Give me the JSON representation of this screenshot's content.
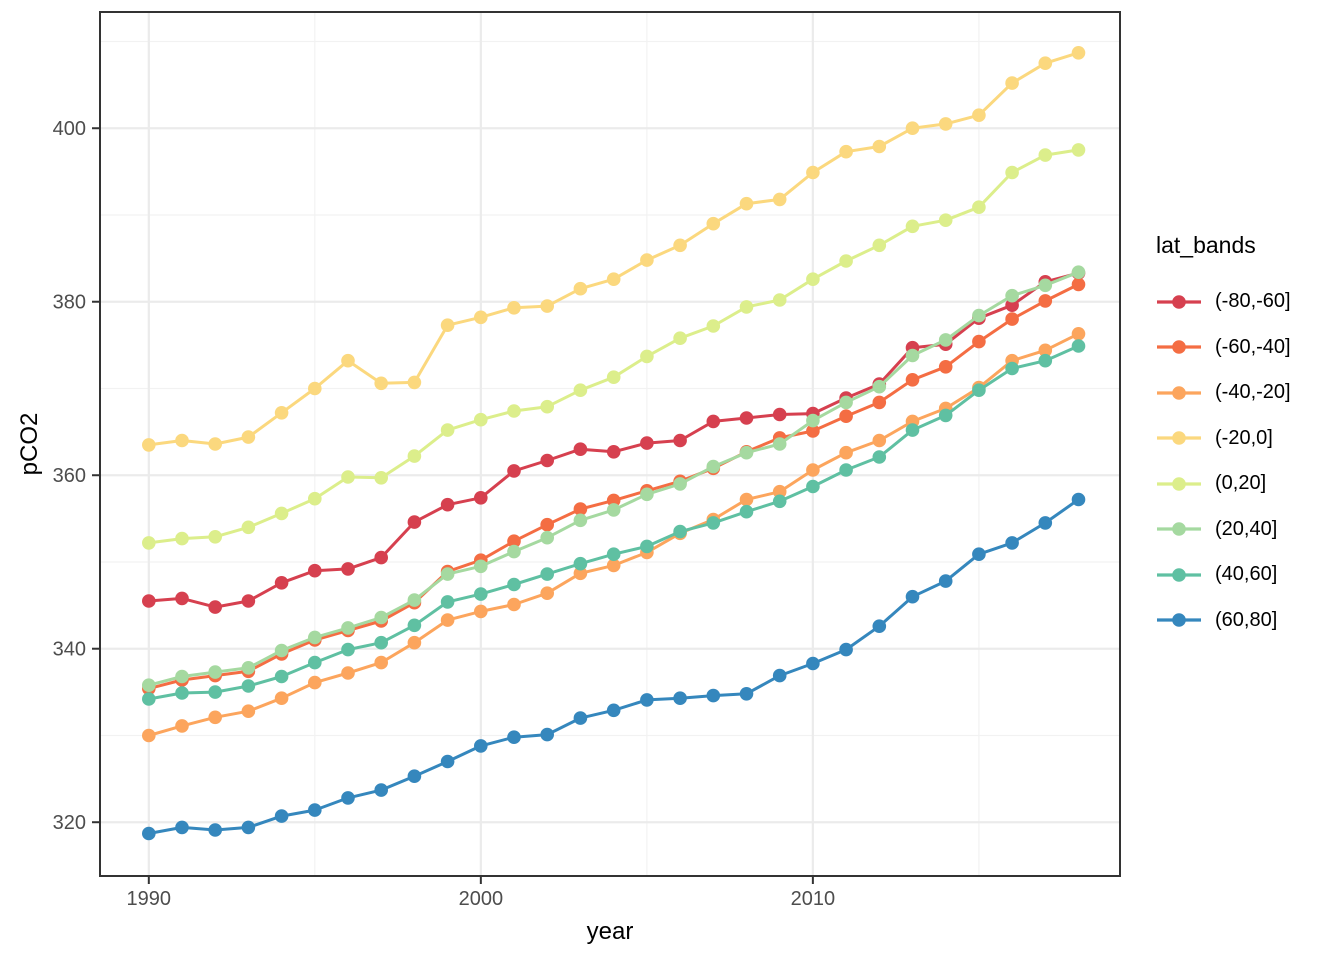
{
  "chart_data": {
    "type": "line",
    "title": "",
    "xlabel": "year",
    "ylabel": "pCO2",
    "legend_title": "lat_bands",
    "legend_position": "right",
    "grid": "on",
    "background": "#ffffff",
    "panel_border_color": "#333333",
    "grid_major_color": "#ebebeb",
    "grid_minor_color": "#f2f2f2",
    "tick_label_color": "#4d4d4d",
    "axis_title_color": "#000000",
    "xlim": [
      1988.53,
      2019.25
    ],
    "ylim": [
      313.8,
      413.4
    ],
    "x_major_ticks": [
      1990,
      2000,
      2010
    ],
    "x_minor_ticks": [
      1995,
      2005,
      2015
    ],
    "y_major_ticks": [
      320,
      340,
      360,
      380,
      400
    ],
    "y_minor_ticks": [
      330,
      350,
      370,
      390,
      410
    ],
    "x": [
      1990,
      1991,
      1992,
      1993,
      1994,
      1995,
      1996,
      1997,
      1998,
      1999,
      2000,
      2001,
      2002,
      2003,
      2004,
      2005,
      2006,
      2007,
      2008,
      2009,
      2010,
      2011,
      2012,
      2013,
      2014,
      2015,
      2016,
      2017,
      2018
    ],
    "series": [
      {
        "name": "(-80,-60]",
        "color": "#D6404F",
        "values": [
          345.5,
          345.8,
          344.8,
          345.5,
          347.6,
          349.0,
          349.2,
          350.5,
          354.6,
          356.6,
          357.4,
          360.5,
          361.7,
          363.0,
          362.7,
          363.7,
          364.0,
          366.2,
          366.6,
          367.0,
          367.1,
          368.9,
          370.5,
          374.7,
          375.1,
          378.1,
          379.6,
          382.3,
          383.3
        ]
      },
      {
        "name": "(-60,-40]",
        "color": "#F46D43",
        "values": [
          335.4,
          336.4,
          336.9,
          337.4,
          339.4,
          341.0,
          342.1,
          343.2,
          345.3,
          348.9,
          350.2,
          352.4,
          354.3,
          356.1,
          357.1,
          358.2,
          359.3,
          360.8,
          362.7,
          364.3,
          365.1,
          366.8,
          368.4,
          371.0,
          372.5,
          375.4,
          378.0,
          380.1,
          382.0
        ]
      },
      {
        "name": "(-40,-20]",
        "color": "#FCA55D",
        "values": [
          330.0,
          331.1,
          332.1,
          332.8,
          334.3,
          336.1,
          337.2,
          338.4,
          340.7,
          343.3,
          344.3,
          345.1,
          346.4,
          348.7,
          349.6,
          351.1,
          353.3,
          354.9,
          357.2,
          358.1,
          360.6,
          362.6,
          364.0,
          366.2,
          367.7,
          370.1,
          373.2,
          374.4,
          376.3
        ]
      },
      {
        "name": "(-20,0]",
        "color": "#FBD87E",
        "values": [
          363.5,
          364.0,
          363.6,
          364.4,
          367.2,
          370.0,
          373.2,
          370.6,
          370.7,
          377.3,
          378.2,
          379.3,
          379.5,
          381.5,
          382.6,
          384.8,
          386.5,
          389.0,
          391.3,
          391.8,
          394.9,
          397.3,
          397.9,
          400.0,
          400.5,
          401.5,
          405.2,
          407.5,
          408.7
        ]
      },
      {
        "name": "(0,20]",
        "color": "#DCEE8B",
        "values": [
          352.2,
          352.7,
          352.9,
          354.0,
          355.6,
          357.3,
          359.8,
          359.7,
          362.2,
          365.2,
          366.4,
          367.4,
          367.9,
          369.8,
          371.3,
          373.7,
          375.8,
          377.2,
          379.4,
          380.2,
          382.6,
          384.7,
          386.5,
          388.7,
          389.4,
          390.9,
          394.9,
          396.9,
          397.5
        ]
      },
      {
        "name": "(20,40]",
        "color": "#A5D9A0",
        "values": [
          335.8,
          336.8,
          337.3,
          337.8,
          339.8,
          341.3,
          342.4,
          343.6,
          345.6,
          348.6,
          349.5,
          351.2,
          352.8,
          354.8,
          356.0,
          357.8,
          359.0,
          361.0,
          362.6,
          363.6,
          366.3,
          368.4,
          370.2,
          373.8,
          375.6,
          378.4,
          380.7,
          381.9,
          383.4
        ]
      },
      {
        "name": "(40,60]",
        "color": "#5FC0A2",
        "values": [
          334.2,
          334.9,
          335.0,
          335.7,
          336.8,
          338.4,
          339.9,
          340.7,
          342.7,
          345.4,
          346.3,
          347.4,
          348.6,
          349.8,
          350.9,
          351.8,
          353.5,
          354.5,
          355.8,
          357.0,
          358.7,
          360.6,
          362.1,
          365.2,
          366.9,
          369.8,
          372.3,
          373.2,
          374.9
        ]
      },
      {
        "name": "(60,80]",
        "color": "#3587BD",
        "values": [
          318.7,
          319.4,
          319.1,
          319.4,
          320.7,
          321.4,
          322.8,
          323.7,
          325.3,
          327.0,
          328.8,
          329.8,
          330.1,
          332.0,
          332.9,
          334.1,
          334.3,
          334.6,
          334.8,
          336.9,
          338.3,
          339.9,
          342.6,
          346.0,
          347.8,
          350.9,
          352.2,
          354.5,
          357.2
        ]
      }
    ]
  }
}
